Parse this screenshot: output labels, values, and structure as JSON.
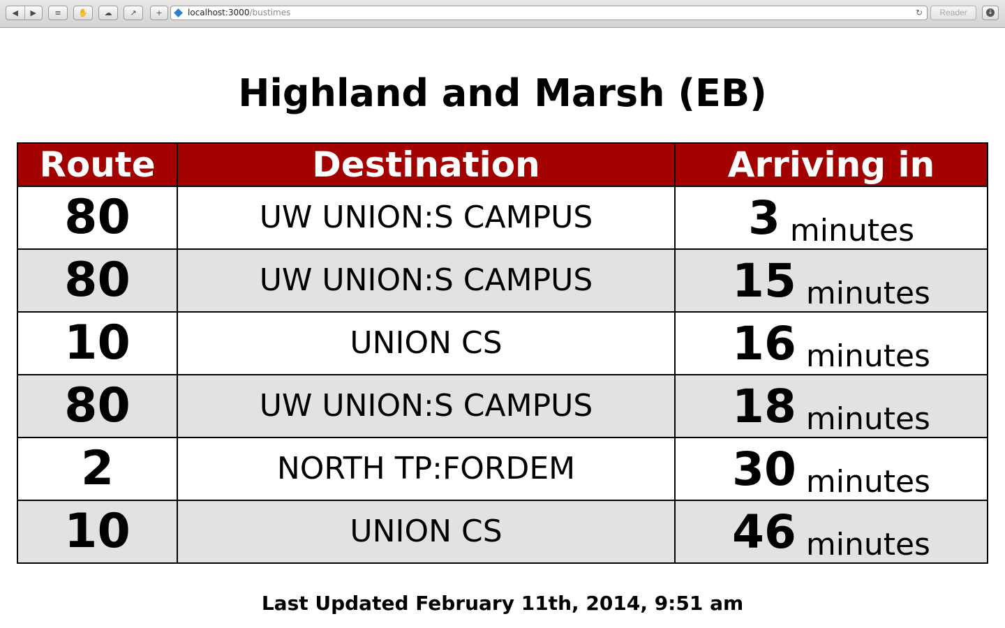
{
  "browser": {
    "url_host": "localhost:3000",
    "url_path": "/bustimes",
    "reader_label": "Reader"
  },
  "page": {
    "title": "Highland and Marsh (EB)",
    "headers": {
      "route": "Route",
      "destination": "Destination",
      "arriving": "Arriving in"
    },
    "rows": [
      {
        "route": "80",
        "destination": "UW UNION:S CAMPUS",
        "minutes": "3",
        "unit": "minutes"
      },
      {
        "route": "80",
        "destination": "UW UNION:S CAMPUS",
        "minutes": "15",
        "unit": "minutes"
      },
      {
        "route": "10",
        "destination": "UNION CS",
        "minutes": "16",
        "unit": "minutes"
      },
      {
        "route": "80",
        "destination": "UW UNION:S CAMPUS",
        "minutes": "18",
        "unit": "minutes"
      },
      {
        "route": "2",
        "destination": "NORTH TP:FORDEM",
        "minutes": "30",
        "unit": "minutes"
      },
      {
        "route": "10",
        "destination": "UNION CS",
        "minutes": "46",
        "unit": "minutes"
      }
    ],
    "last_updated": "Last Updated February 11th, 2014, 9:51 am"
  },
  "colors": {
    "header_bg": "#a30000",
    "alt_row_bg": "#e2e2e2"
  }
}
